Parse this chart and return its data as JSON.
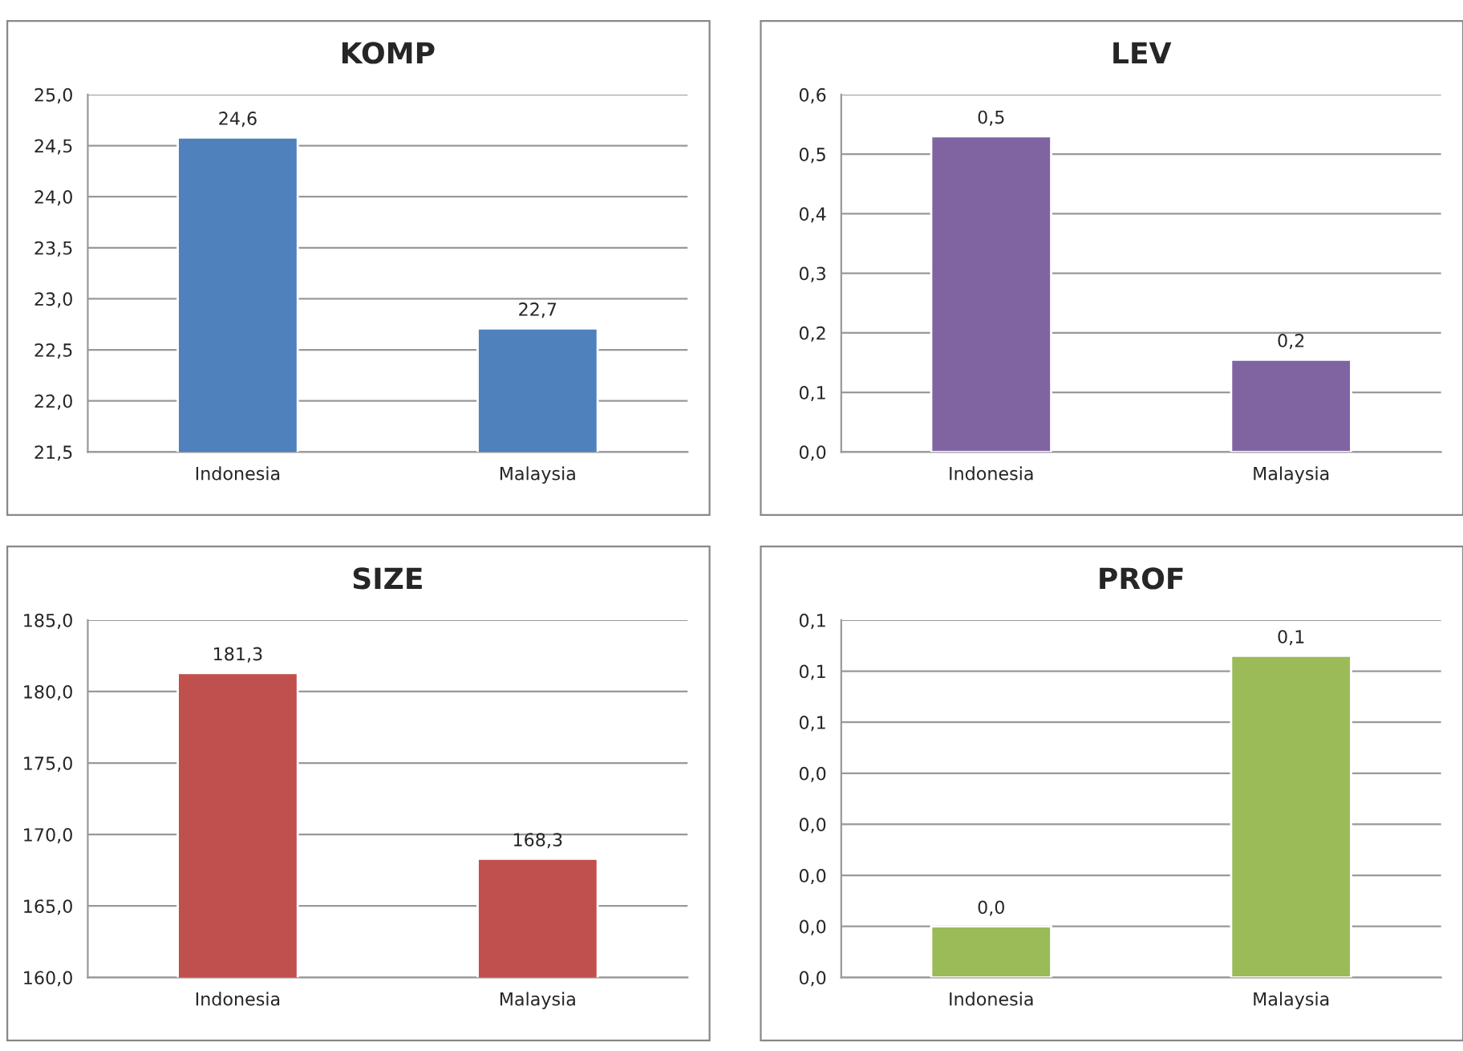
{
  "chart_data": [
    {
      "type": "bar",
      "title": "KOMP",
      "categories": [
        "Indonesia",
        "Malaysia"
      ],
      "values": [
        24.58,
        22.71
      ],
      "color": "#4f81bd",
      "value_labels": [
        "24,6",
        "22,7"
      ],
      "ylim": [
        21.5,
        25.0
      ],
      "yticks": [
        {
          "value": 21.5,
          "label": "21,5"
        },
        {
          "value": 22.0,
          "label": "22,0"
        },
        {
          "value": 22.5,
          "label": "22,5"
        },
        {
          "value": 23.0,
          "label": "23,0"
        },
        {
          "value": 23.5,
          "label": "23,5"
        },
        {
          "value": 24.0,
          "label": "24,0"
        },
        {
          "value": 24.5,
          "label": "24,5"
        },
        {
          "value": 25.0,
          "label": "25,0"
        }
      ],
      "grid": "y",
      "legend": false
    },
    {
      "type": "bar",
      "title": "LEV",
      "categories": [
        "Indonesia",
        "Malaysia"
      ],
      "values": [
        0.53,
        0.155
      ],
      "color": "#8064a2",
      "value_labels": [
        "0,5",
        "0,2"
      ],
      "ylim": [
        0,
        0.6
      ],
      "yticks": [
        {
          "value": 0,
          "label": "0,0"
        },
        {
          "value": 0.1,
          "label": "0,1"
        },
        {
          "value": 0.2,
          "label": "0,2"
        },
        {
          "value": 0.3,
          "label": "0,3"
        },
        {
          "value": 0.4,
          "label": "0,4"
        },
        {
          "value": 0.5,
          "label": "0,5"
        },
        {
          "value": 0.6,
          "label": "0,6"
        }
      ],
      "grid": "y",
      "legend": false
    },
    {
      "type": "bar",
      "title": "SIZE",
      "categories": [
        "Indonesia",
        "Malaysia"
      ],
      "values": [
        181.3,
        168.3
      ],
      "color": "#c0504d",
      "value_labels": [
        "181,3",
        "168,3"
      ],
      "ylim": [
        160,
        185
      ],
      "yticks": [
        {
          "value": 160,
          "label": "160,0"
        },
        {
          "value": 165,
          "label": "165,0"
        },
        {
          "value": 170,
          "label": "170,0"
        },
        {
          "value": 175,
          "label": "175,0"
        },
        {
          "value": 180,
          "label": "180,0"
        },
        {
          "value": 185,
          "label": "185,0"
        }
      ],
      "grid": "y",
      "legend": false
    },
    {
      "type": "bar",
      "title": "PROF",
      "categories": [
        "Indonesia",
        "Malaysia"
      ],
      "values": [
        0.01,
        0.063
      ],
      "color": "#9bbb59",
      "value_labels": [
        "0,0",
        "0,1"
      ],
      "ylim": [
        0,
        0.07
      ],
      "yticks": [
        {
          "value": 0,
          "label": "0,0"
        },
        {
          "value": 0.01,
          "label": "0,0"
        },
        {
          "value": 0.02,
          "label": "0,0"
        },
        {
          "value": 0.03,
          "label": "0,0"
        },
        {
          "value": 0.04,
          "label": "0,0"
        },
        {
          "value": 0.05,
          "label": "0,1"
        },
        {
          "value": 0.06,
          "label": "0,1"
        },
        {
          "value": 0.07,
          "label": "0,1"
        }
      ],
      "grid": "y",
      "legend": false
    }
  ]
}
